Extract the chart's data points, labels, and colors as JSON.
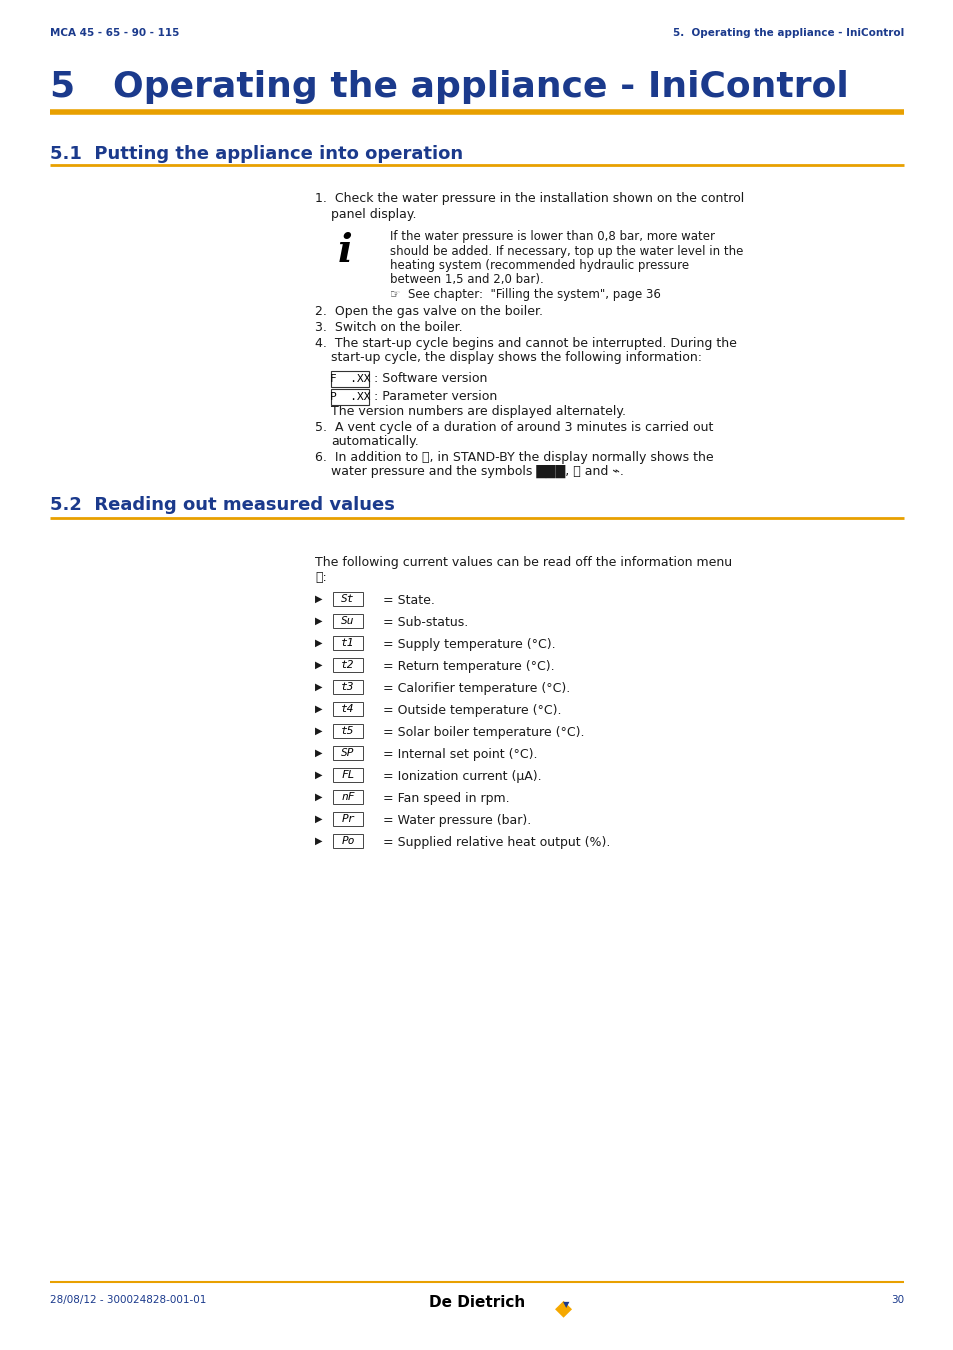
{
  "page_bg": "#ffffff",
  "header_left": "MCA 45 - 65 - 90 - 115",
  "header_right": "5.  Operating the appliance - IniControl",
  "header_color": "#1b3a8c",
  "chapter_number": "5",
  "chapter_title": "   Operating the appliance - IniControl",
  "chapter_color": "#1b3a8c",
  "gold_color": "#e8a000",
  "section1_num": "5.1",
  "section1_title": "  Putting the appliance into operation",
  "section2_num": "5.2",
  "section2_title": "  Reading out measured values",
  "section_color": "#1b3a8c",
  "body_color": "#1a1a1a",
  "footer_left": "28/08/12 - 300024828-001-01",
  "footer_page": "30",
  "footer_color": "#1b3a8c"
}
